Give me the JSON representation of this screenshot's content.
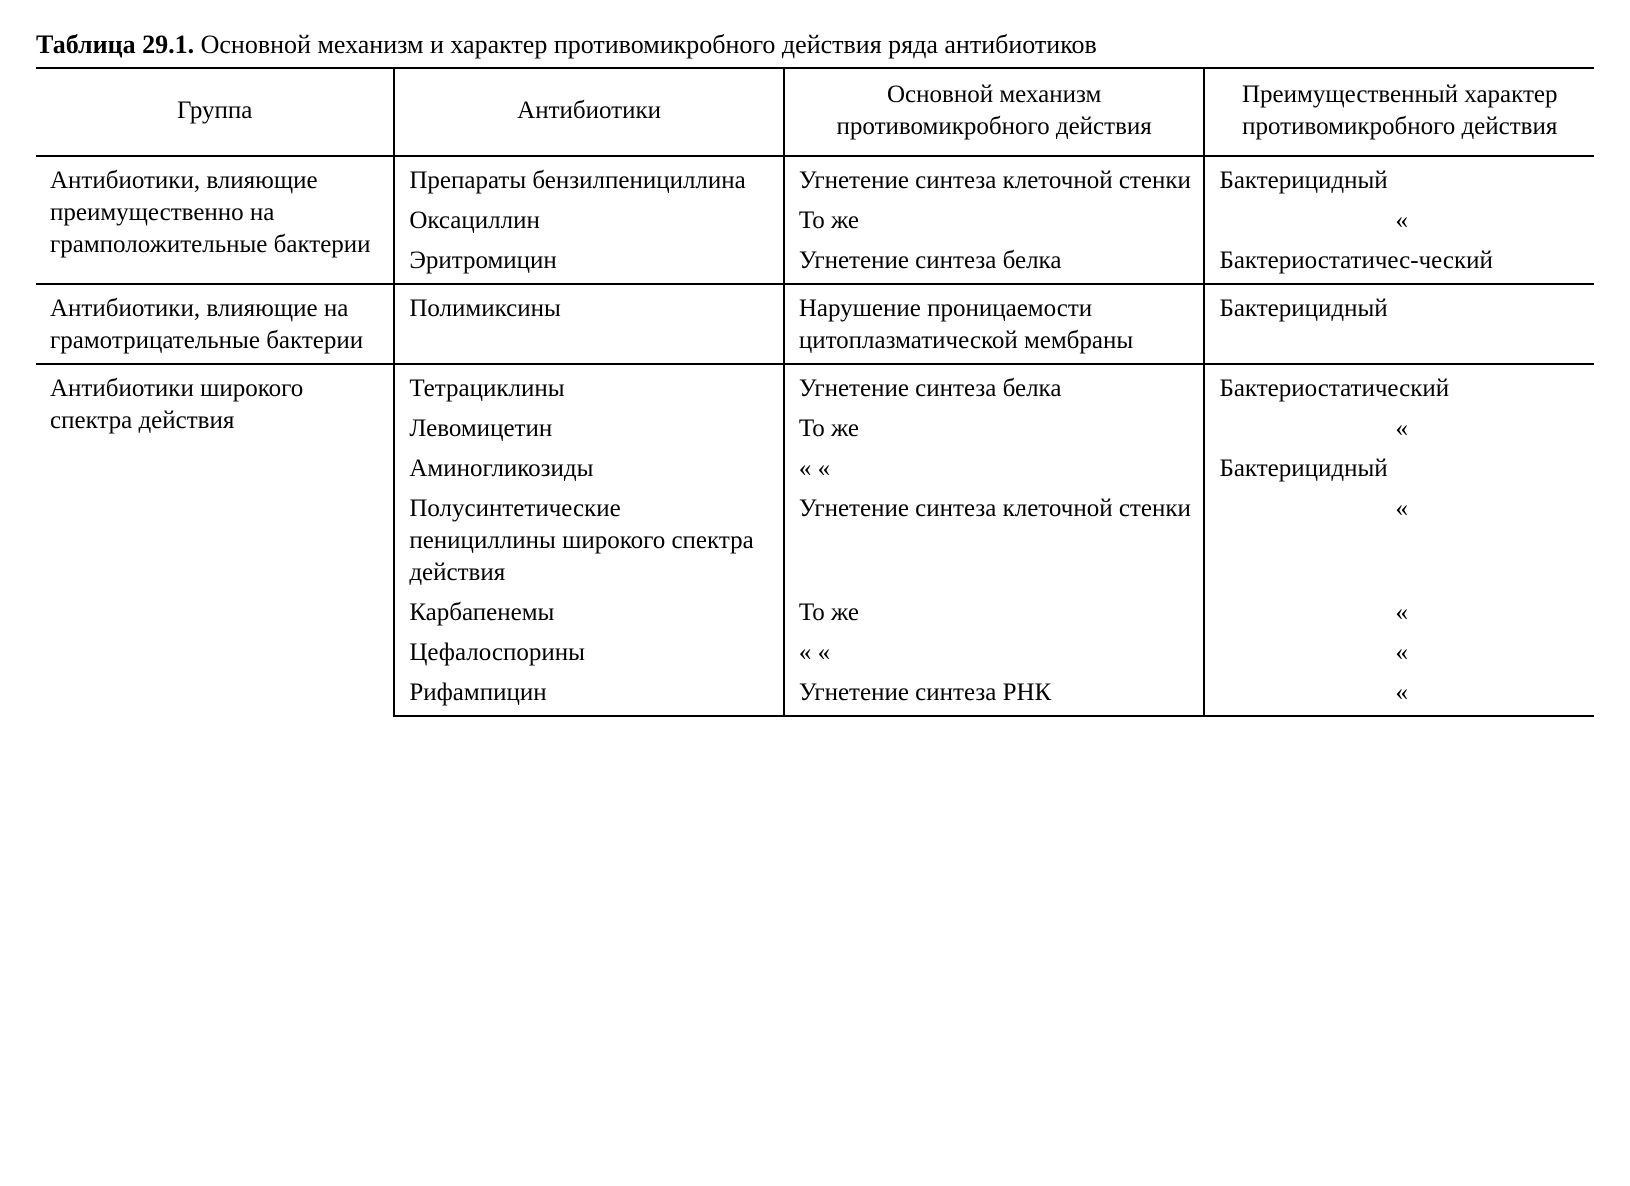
{
  "caption": {
    "label": "Таблица 29.1.",
    "text": "Основной механизм и характер противомикробного действия ряда антибиотиков"
  },
  "headers": {
    "group": "Группа",
    "antibiotics": "Антибиотики",
    "mechanism": "Основной механизм противомикробного действия",
    "character": "Преимущественный характер противомикробного действия"
  },
  "groups": [
    {
      "name": "Антибиотики, влияющие преимущественно на грамположительные бактерии",
      "rows": [
        {
          "antibiotic": "Препараты бензилпенициллина",
          "mechanism": "Угнетение синтеза клеточной стенки",
          "character": "Бактерицидный",
          "char_center": false
        },
        {
          "antibiotic": "Оксациллин",
          "mechanism": "То же",
          "character": "«",
          "char_center": true
        },
        {
          "antibiotic": "Эритромицин",
          "mechanism": "Угнетение синтеза белка",
          "character": "Бактериостатичес-ческий",
          "char_center": false
        }
      ]
    },
    {
      "name": "Антибиотики, влияющие на грамотрицательные бактерии",
      "rows": [
        {
          "antibiotic": "Полимиксины",
          "mechanism": "Нарушение проницаемости цитоплазматической мембраны",
          "character": "Бактерицидный",
          "char_center": false
        }
      ]
    },
    {
      "name": "Антибиотики широкого спектра действия",
      "rows": [
        {
          "antibiotic": "Тетрациклины",
          "mechanism": "Угнетение синтеза белка",
          "character": "Бактериостатический",
          "char_center": false
        },
        {
          "antibiotic": "Левомицетин",
          "mechanism": "То же",
          "character": "«",
          "char_center": true
        },
        {
          "antibiotic": "Аминогликозиды",
          "mechanism": "«    «",
          "character": "Бактерицидный",
          "char_center": false
        },
        {
          "antibiotic": "Полусинтетические пенициллины широкого спектра действия",
          "mechanism": "Угнетение синтеза клеточной стенки",
          "character": "«",
          "char_center": true
        },
        {
          "antibiotic": "Карбапенемы",
          "mechanism": "То же",
          "character": "«",
          "char_center": true
        },
        {
          "antibiotic": "Цефалоспорины",
          "mechanism": "«    «",
          "character": "«",
          "char_center": true
        },
        {
          "antibiotic": "Рифампицин",
          "mechanism": "Угнетение синтеза РНК",
          "character": "«",
          "char_center": true
        }
      ]
    }
  ]
}
